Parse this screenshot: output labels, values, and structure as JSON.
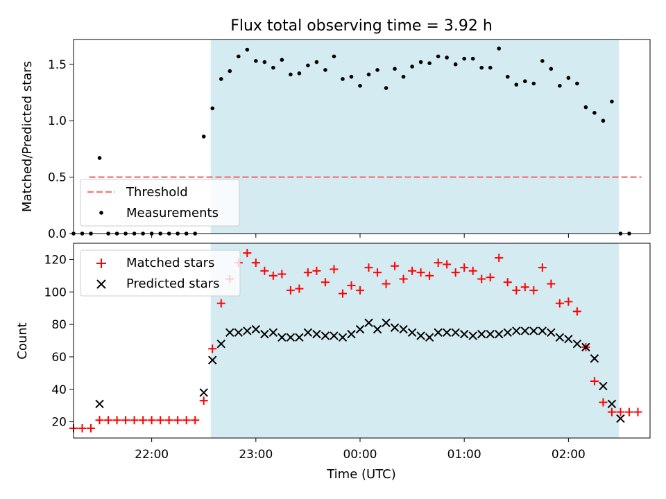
{
  "title": "Flux total observing time = 3.92 h",
  "colors": {
    "shade": "#add8e6",
    "threshold": "#f08080",
    "matched": "#ff0000",
    "predicted": "#000000",
    "measurement": "#000000"
  },
  "chart_data": [
    {
      "type": "scatter",
      "panel": "top",
      "ylabel": "Matched/Predicted stars",
      "xlabel": "",
      "xlim": [
        "21:15",
        "02:47"
      ],
      "ylim": [
        0,
        1.72
      ],
      "yticks": [
        0.0,
        0.5,
        1.0,
        1.5
      ],
      "ytick_labels": [
        "0.0",
        "0.5",
        "1.0",
        "1.5"
      ],
      "shaded_region": {
        "start": "22:34",
        "end": "02:29"
      },
      "threshold": {
        "name": "Threshold",
        "value": 0.5,
        "x_start": "21:24",
        "x_end": "02:42"
      },
      "legend": {
        "location": "lower-left",
        "entries": [
          "Threshold",
          "Measurements"
        ]
      },
      "series": [
        {
          "name": "Measurements",
          "marker": "dot",
          "x": [
            "21:15",
            "21:20",
            "21:25",
            "21:30",
            "21:35",
            "21:40",
            "21:45",
            "21:50",
            "21:55",
            "22:00",
            "22:05",
            "22:10",
            "22:15",
            "22:20",
            "22:25",
            "22:30",
            "22:35",
            "22:40",
            "22:45",
            "22:50",
            "22:55",
            "23:00",
            "23:05",
            "23:10",
            "23:15",
            "23:20",
            "23:25",
            "23:30",
            "23:35",
            "23:40",
            "23:45",
            "23:50",
            "23:55",
            "00:00",
            "00:05",
            "00:10",
            "00:15",
            "00:20",
            "00:25",
            "00:30",
            "00:35",
            "00:40",
            "00:45",
            "00:50",
            "00:55",
            "01:00",
            "01:05",
            "01:10",
            "01:15",
            "01:20",
            "01:25",
            "01:30",
            "01:35",
            "01:40",
            "01:45",
            "01:50",
            "01:55",
            "02:00",
            "02:05",
            "02:10",
            "02:15",
            "02:20",
            "02:25",
            "02:30",
            "02:35"
          ],
          "y": [
            0,
            0,
            0,
            0.67,
            0,
            0,
            0,
            0,
            0,
            0,
            0,
            0,
            0,
            0,
            0,
            0.86,
            1.11,
            1.37,
            1.44,
            1.57,
            1.63,
            1.53,
            1.52,
            1.47,
            1.54,
            1.41,
            1.42,
            1.49,
            1.52,
            1.45,
            1.57,
            1.37,
            1.39,
            1.31,
            1.41,
            1.45,
            1.29,
            1.46,
            1.39,
            1.48,
            1.52,
            1.51,
            1.57,
            1.56,
            1.5,
            1.55,
            1.55,
            1.47,
            1.47,
            1.64,
            1.39,
            1.32,
            1.35,
            1.33,
            1.53,
            1.46,
            1.31,
            1.38,
            1.33,
            1.12,
            1.07,
            1.0,
            1.17,
            0,
            0
          ]
        }
      ]
    },
    {
      "type": "scatter",
      "panel": "bottom",
      "ylabel": "Count",
      "xlabel": "Time (UTC)",
      "xlim": [
        "21:15",
        "02:47"
      ],
      "ylim": [
        10,
        130
      ],
      "yticks": [
        20,
        40,
        60,
        80,
        100,
        120
      ],
      "xticks": [
        "22:00",
        "23:00",
        "00:00",
        "01:00",
        "02:00"
      ],
      "shaded_region": {
        "start": "22:34",
        "end": "02:29"
      },
      "legend": {
        "location": "upper-left",
        "entries": [
          "Matched stars",
          "Predicted stars"
        ]
      },
      "series": [
        {
          "name": "Matched stars",
          "marker": "plus",
          "x": [
            "21:15",
            "21:20",
            "21:25",
            "21:30",
            "21:35",
            "21:40",
            "21:45",
            "21:50",
            "21:55",
            "22:00",
            "22:05",
            "22:10",
            "22:15",
            "22:20",
            "22:25",
            "22:30",
            "22:35",
            "22:40",
            "22:45",
            "22:50",
            "22:55",
            "23:00",
            "23:05",
            "23:10",
            "23:15",
            "23:20",
            "23:25",
            "23:30",
            "23:35",
            "23:40",
            "23:45",
            "23:50",
            "23:55",
            "00:00",
            "00:05",
            "00:10",
            "00:15",
            "00:20",
            "00:25",
            "00:30",
            "00:35",
            "00:40",
            "00:45",
            "00:50",
            "00:55",
            "01:00",
            "01:05",
            "01:10",
            "01:15",
            "01:20",
            "01:25",
            "01:30",
            "01:35",
            "01:40",
            "01:45",
            "01:50",
            "01:55",
            "02:00",
            "02:05",
            "02:10",
            "02:15",
            "02:20",
            "02:25",
            "02:30",
            "02:35",
            "02:40"
          ],
          "y": [
            16,
            16,
            16,
            21,
            21,
            21,
            21,
            21,
            21,
            21,
            21,
            21,
            21,
            21,
            21,
            33,
            65,
            93,
            108,
            118,
            124,
            118,
            113,
            110,
            111,
            101,
            102,
            112,
            113,
            106,
            114,
            99,
            104,
            101,
            115,
            112,
            105,
            116,
            108,
            113,
            112,
            110,
            118,
            117,
            112,
            115,
            113,
            108,
            109,
            121,
            106,
            101,
            103,
            101,
            115,
            105,
            93,
            94,
            88,
            66,
            45,
            32,
            26,
            26,
            26,
            26
          ]
        },
        {
          "name": "Predicted stars",
          "marker": "x",
          "x": [
            "21:30",
            "22:30",
            "22:35",
            "22:40",
            "22:45",
            "22:50",
            "22:55",
            "23:00",
            "23:05",
            "23:10",
            "23:15",
            "23:20",
            "23:25",
            "23:30",
            "23:35",
            "23:40",
            "23:45",
            "23:50",
            "23:55",
            "00:00",
            "00:05",
            "00:10",
            "00:15",
            "00:20",
            "00:25",
            "00:30",
            "00:35",
            "00:40",
            "00:45",
            "00:50",
            "00:55",
            "01:00",
            "01:05",
            "01:10",
            "01:15",
            "01:20",
            "01:25",
            "01:30",
            "01:35",
            "01:40",
            "01:45",
            "01:50",
            "01:55",
            "02:00",
            "02:05",
            "02:10",
            "02:15",
            "02:20",
            "02:25",
            "02:30"
          ],
          "y": [
            31,
            38,
            58,
            68,
            75,
            75,
            76,
            77,
            74,
            75,
            72,
            72,
            72,
            75,
            74,
            73,
            73,
            72,
            74,
            77,
            81,
            77,
            81,
            78,
            77,
            75,
            73,
            72,
            75,
            75,
            75,
            74,
            73,
            74,
            74,
            74,
            75,
            76,
            76,
            76,
            76,
            75,
            72,
            71,
            68,
            66,
            59,
            42,
            31,
            22
          ]
        }
      ]
    }
  ]
}
